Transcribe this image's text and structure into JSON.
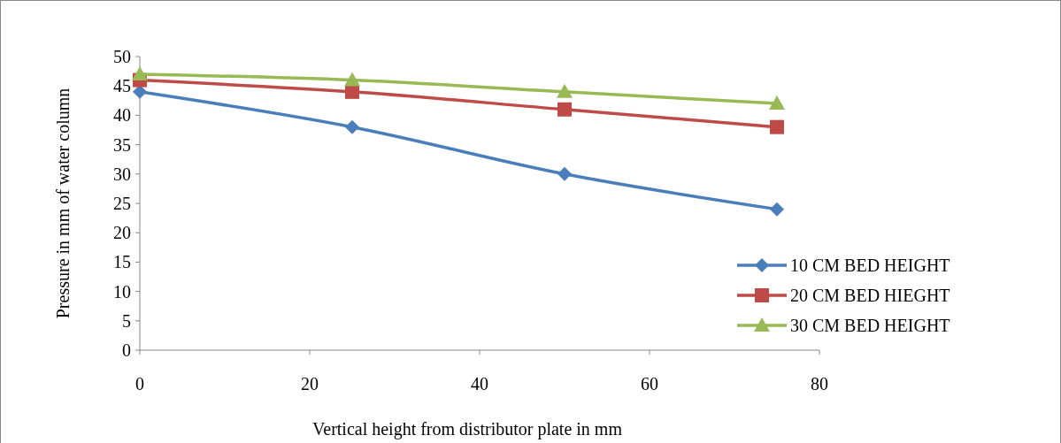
{
  "chart_data": {
    "type": "line",
    "xlabel": "Vertical height from distributor plate in mm",
    "ylabel": "Pressure in mm of water column",
    "x": [
      0,
      25,
      50,
      75
    ],
    "series": [
      {
        "name": "10 CM BED HEIGHT",
        "color": "#4a7ebb",
        "values": [
          44,
          38,
          30,
          24
        ],
        "marker": "diamond"
      },
      {
        "name": "20 CM BED HIEGHT",
        "color": "#be4b48",
        "values": [
          46,
          44,
          41,
          38
        ],
        "marker": "square"
      },
      {
        "name": "30 CM BED HEIGHT",
        "color": "#98b954",
        "values": [
          47,
          46,
          44,
          42
        ],
        "marker": "triangle"
      }
    ],
    "xlim": [
      0,
      80
    ],
    "xticks": [
      0,
      20,
      40,
      60,
      80
    ],
    "ylim": [
      0,
      50
    ],
    "yticks": [
      0,
      5,
      10,
      15,
      20,
      25,
      30,
      35,
      40,
      45,
      50
    ],
    "grid": false,
    "legend": "right",
    "line_style": "solid"
  }
}
